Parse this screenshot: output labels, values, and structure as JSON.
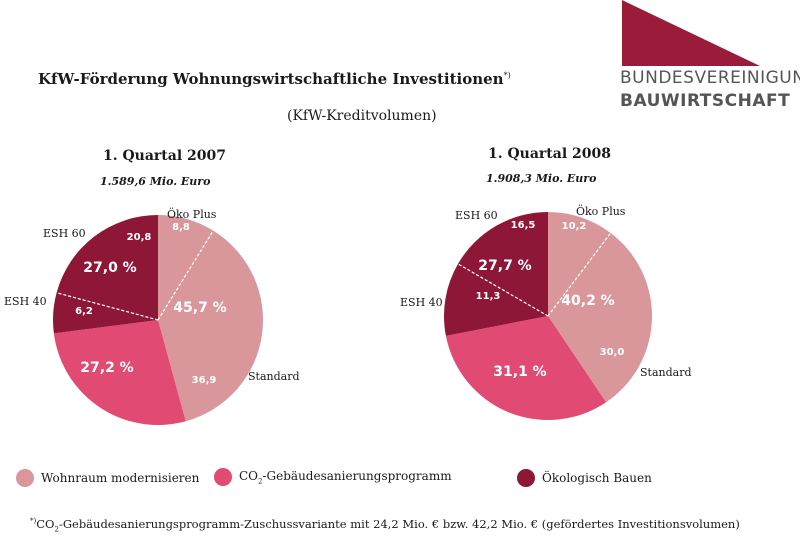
{
  "title": "KfW-Förderung Wohnungswirtschaftliche Investitionen",
  "title_marker": "*)",
  "subtitle": "(KfW-Kreditvolumen)",
  "logo": {
    "line1": "BUNDESVEREINIGUNG",
    "line2": "BAUWIRTSCHAFT",
    "color": "#9b1b3a"
  },
  "colors": {
    "wohnraum": "#d9979b",
    "co2": "#e14a72",
    "oeko": "#8e1637"
  },
  "legend": [
    {
      "label": "Wohnraum modernisieren",
      "color": "#d9979b"
    },
    {
      "label_pre": "CO",
      "label_sub": "2",
      "label_post": "-Gebäudesanierungsprogramm",
      "color": "#e14a72"
    },
    {
      "label": "Ökologisch Bauen",
      "color": "#8e1637"
    }
  ],
  "footnote": {
    "marker": "*)",
    "pre": "CO",
    "sub": "2",
    "post": "-Gebäudesanierungsprogramm-Zuschussvariante mit 24,2 Mio. € bzw. 42,2 Mio. € (gefördertes Investitionsvolumen)"
  },
  "chart_data": [
    {
      "type": "pie",
      "title": "1. Quartal 2007",
      "subtitle": "1.589,6 Mio. Euro",
      "slices": [
        {
          "name": "Öko Plus",
          "value": 8.8,
          "group": "wohnraum"
        },
        {
          "name": "Standard",
          "value": 36.9,
          "group": "wohnraum"
        },
        {
          "name": "",
          "value": 27.2,
          "group": "co2"
        },
        {
          "name": "ESH 40",
          "value": 6.2,
          "group": "oeko"
        },
        {
          "name": "ESH 60",
          "value": 20.8,
          "group": "oeko"
        }
      ],
      "group_labels": [
        {
          "group": "wohnraum",
          "label": "45,7 %"
        },
        {
          "group": "co2",
          "label": "27,2 %"
        },
        {
          "group": "oeko",
          "label": "27,0 %"
        }
      ],
      "slice_labels": [
        "8,8",
        "36,9",
        "",
        "6,2",
        "20,8"
      ],
      "outer_labels": [
        "Öko Plus",
        "Standard",
        "",
        "ESH 40",
        "ESH 60"
      ]
    },
    {
      "type": "pie",
      "title": "1. Quartal 2008",
      "subtitle": "1.908,3 Mio. Euro",
      "slices": [
        {
          "name": "Öko Plus",
          "value": 10.2,
          "group": "wohnraum"
        },
        {
          "name": "Standard",
          "value": 30.0,
          "group": "wohnraum"
        },
        {
          "name": "",
          "value": 31.1,
          "group": "co2"
        },
        {
          "name": "ESH 40",
          "value": 11.3,
          "group": "oeko"
        },
        {
          "name": "ESH 60",
          "value": 16.5,
          "group": "oeko"
        }
      ],
      "group_labels": [
        {
          "group": "wohnraum",
          "label": "40,2 %"
        },
        {
          "group": "co2",
          "label": "31,1 %"
        },
        {
          "group": "oeko",
          "label": "27,7 %"
        }
      ],
      "slice_labels": [
        "10,2",
        "30,0",
        "",
        "11,3",
        "16,5"
      ],
      "outer_labels": [
        "Öko Plus",
        "Standard",
        "",
        "ESH 40",
        "ESH 60"
      ]
    }
  ]
}
